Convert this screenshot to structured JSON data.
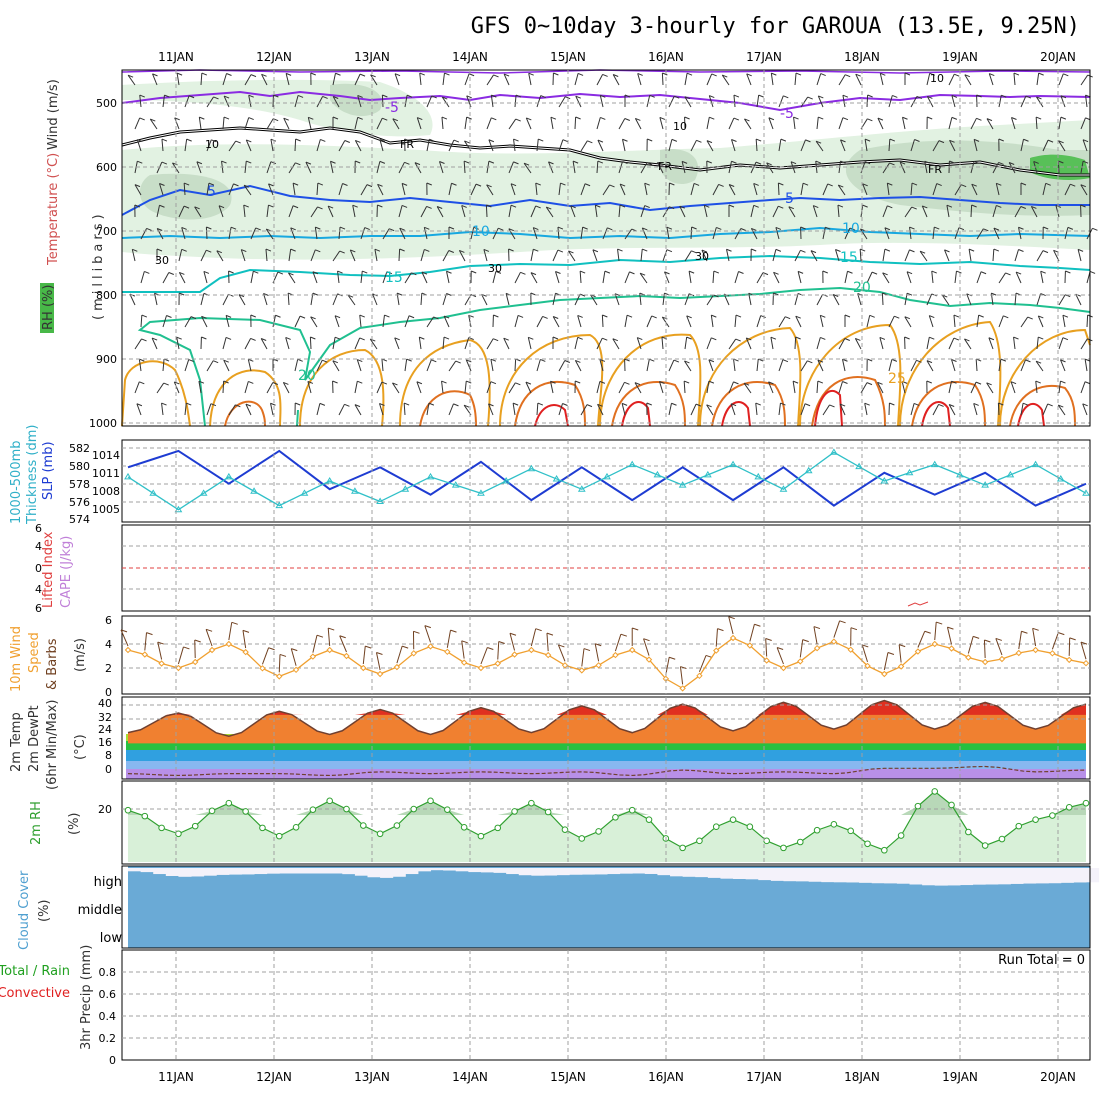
{
  "title": "GFS 0~10day 3-hourly for GAROUA (13.5E, 9.25N)",
  "dates": [
    "11JAN",
    "12JAN",
    "13JAN",
    "14JAN",
    "15JAN",
    "16JAN",
    "17JAN",
    "18JAN",
    "19JAN",
    "20JAN"
  ],
  "run_total": "Run Total = 0",
  "colors": {
    "temp_purple": "#8a2be2",
    "temp_blue": "#1e50e6",
    "temp_cyan": "#18a8e0",
    "temp_teal": "#10c0c0",
    "temp_green": "#20c090",
    "freezing": "#000000",
    "cape_orange": "#e8a020",
    "slp": "#1e3cd2",
    "thickness": "#30c0c8",
    "wind_speed": "#f0a030",
    "cloud": "#6aaad6",
    "rh_fill": "#d8f0d8",
    "precip_total": "#20a020",
    "precip_conv": "#e02020"
  },
  "panels": {
    "upper_air": {
      "y_label_wind": "Wind (m/s)",
      "y_label_temp": "Temperature (°C)",
      "y_label_rh": "RH (%)",
      "y_label_axis": "(millibars)",
      "ticks": [
        "500",
        "600",
        "700",
        "800",
        "900",
        "1000"
      ],
      "contour_labels": [
        "-5",
        "-5",
        "FR",
        "FR",
        "FR",
        "5",
        "5",
        "10",
        "10",
        "15",
        "15",
        "20",
        "20",
        "25",
        "10",
        "10",
        "30",
        "30",
        "30",
        "10"
      ]
    },
    "slp": {
      "y_label_a": "1000-500mb",
      "y_label_b": "Thickness (dm)",
      "y_label_c": "SLP (mb)",
      "ticks_left": [
        "582",
        "580",
        "578",
        "576",
        "574"
      ],
      "ticks_right": [
        "1014",
        "1011",
        "1008",
        "1005"
      ]
    },
    "stability": {
      "y_label_a": "Lifted Index",
      "y_label_b": "CAPE (J/kg)",
      "ticks": [
        "6",
        "4",
        "2",
        "0",
        "2",
        "4",
        "6"
      ]
    },
    "wind10m": {
      "y_label_a": "10m Wind",
      "y_label_b": "Speed",
      "y_label_c": "& Barbs",
      "y_label_d": "(m/s)",
      "ticks": [
        "6",
        "4",
        "2",
        "0"
      ]
    },
    "temp2m": {
      "y_label_a": "2m Temp",
      "y_label_b": "2m DewPt",
      "y_label_c": "(6hr Min/Max)",
      "y_label_d": "(°C)",
      "ticks": [
        "40",
        "32",
        "24",
        "16",
        "8",
        "0"
      ]
    },
    "rh2m": {
      "y_label_a": "2m RH",
      "y_label_b": "(%)",
      "ticks": [
        "20"
      ]
    },
    "cloud": {
      "y_label_a": "Cloud Cover",
      "y_label_b": "(%)",
      "levels": [
        "high",
        "middle",
        "low"
      ]
    },
    "precip": {
      "y_label_a": "Total / Rain",
      "y_label_b": "Convective",
      "y_label_c": "3hr Precip (mm)",
      "ticks": [
        "0.8",
        "0.6",
        "0.4",
        "0.2",
        "0"
      ]
    }
  },
  "chart_data": [
    {
      "type": "line",
      "title": "2m Temp / 2m DewPt (°C)",
      "x": [
        "11JAN",
        "11JAN 12Z",
        "12JAN",
        "12JAN 12Z",
        "13JAN",
        "13JAN 12Z",
        "14JAN",
        "14JAN 12Z",
        "15JAN",
        "15JAN 12Z",
        "16JAN",
        "16JAN 12Z",
        "17JAN",
        "17JAN 12Z",
        "18JAN",
        "18JAN 12Z",
        "19JAN",
        "19JAN 12Z",
        "20JAN",
        "20JAN 12Z"
      ],
      "series": [
        {
          "name": "2m Temp",
          "values": [
            22,
            33,
            20,
            34,
            21,
            35,
            21,
            36,
            22,
            37,
            22,
            38,
            23,
            39,
            24,
            40,
            24,
            39,
            24,
            38
          ]
        },
        {
          "name": "2m DewPt",
          "values": [
            -1,
            -2,
            -1,
            -1,
            -2,
            0,
            -1,
            0,
            -1,
            0,
            -2,
            1,
            -1,
            0,
            -1,
            2,
            2,
            3,
            0,
            1
          ]
        }
      ],
      "ylim": [
        -4,
        42
      ]
    },
    {
      "type": "line",
      "title": "SLP (mb) / 1000-500mb Thickness (dm)",
      "x": [
        "11JAN",
        "11JAN 12Z",
        "12JAN",
        "12JAN 12Z",
        "13JAN",
        "13JAN 12Z",
        "14JAN",
        "14JAN 12Z",
        "15JAN",
        "15JAN 12Z",
        "16JAN",
        "16JAN 12Z",
        "17JAN",
        "17JAN 12Z",
        "18JAN",
        "18JAN 12Z",
        "19JAN",
        "19JAN 12Z",
        "20JAN",
        "20JAN 12Z"
      ],
      "series": [
        {
          "name": "SLP",
          "values": [
            1012,
            1015,
            1009,
            1015,
            1008,
            1012,
            1007,
            1013,
            1006,
            1012,
            1006,
            1012,
            1006,
            1012,
            1005,
            1011,
            1007,
            1011,
            1005,
            1009
          ]
        },
        {
          "name": "Thickness",
          "values": [
            578.5,
            574.5,
            578.5,
            575.0,
            578.0,
            575.5,
            578.5,
            576.5,
            579.5,
            577.0,
            580.0,
            577.5,
            580.0,
            577.0,
            581.5,
            578.0,
            580.0,
            577.5,
            580.0,
            576.5
          ]
        }
      ]
    },
    {
      "type": "line",
      "title": "10m Wind Speed (m/s)",
      "x": [
        "11JAN",
        "11JAN 12Z",
        "12JAN",
        "12JAN 12Z",
        "13JAN",
        "13JAN 12Z",
        "14JAN",
        "14JAN 12Z",
        "15JAN",
        "15JAN 12Z",
        "16JAN",
        "16JAN 12Z",
        "17JAN",
        "17JAN 12Z",
        "18JAN",
        "18JAN 12Z",
        "19JAN",
        "19JAN 12Z",
        "20JAN",
        "20JAN 12Z"
      ],
      "values": [
        3.5,
        2.0,
        4.0,
        1.3,
        3.5,
        1.5,
        3.8,
        2.0,
        3.5,
        1.8,
        3.5,
        0.3,
        4.5,
        2.0,
        4.2,
        1.5,
        4.0,
        2.5,
        3.5,
        2.4
      ],
      "ylim": [
        0,
        6
      ]
    },
    {
      "type": "line",
      "title": "2m RH (%)",
      "x": [
        "11JAN",
        "11JAN 12Z",
        "12JAN",
        "12JAN 12Z",
        "13JAN",
        "13JAN 12Z",
        "14JAN",
        "14JAN 12Z",
        "15JAN",
        "15JAN 12Z",
        "16JAN",
        "16JAN 12Z",
        "17JAN",
        "17JAN 12Z",
        "18JAN",
        "18JAN 12Z",
        "19JAN",
        "19JAN 12Z",
        "20JAN",
        "20JAN 12Z"
      ],
      "values": [
        22,
        12,
        25,
        11,
        26,
        12,
        26,
        11,
        25,
        10,
        22,
        6,
        18,
        6,
        16,
        5,
        30,
        7,
        18,
        25
      ],
      "ylim": [
        0,
        34
      ]
    },
    {
      "type": "bar",
      "title": "Cloud Cover high (%)",
      "x": [
        "11JAN",
        "11JAN 12Z",
        "12JAN",
        "12JAN 12Z",
        "13JAN",
        "13JAN 12Z",
        "14JAN",
        "14JAN 12Z",
        "15JAN",
        "15JAN 12Z",
        "16JAN",
        "16JAN 12Z",
        "17JAN",
        "17JAN 12Z",
        "18JAN",
        "18JAN 12Z",
        "19JAN",
        "19JAN 12Z",
        "20JAN",
        "20JAN 12Z"
      ],
      "values": [
        85,
        60,
        70,
        75,
        75,
        55,
        90,
        80,
        65,
        70,
        75,
        60,
        50,
        40,
        35,
        30,
        20,
        25,
        30,
        35
      ],
      "ylim": [
        0,
        100
      ]
    },
    {
      "type": "bar",
      "title": "3hr Precip (mm)",
      "x": [
        "11JAN",
        "12JAN",
        "13JAN",
        "14JAN",
        "15JAN",
        "16JAN",
        "17JAN",
        "18JAN",
        "19JAN",
        "20JAN"
      ],
      "values": [
        0,
        0,
        0,
        0,
        0,
        0,
        0,
        0,
        0,
        0
      ],
      "ylim": [
        0,
        0.9
      ]
    }
  ]
}
